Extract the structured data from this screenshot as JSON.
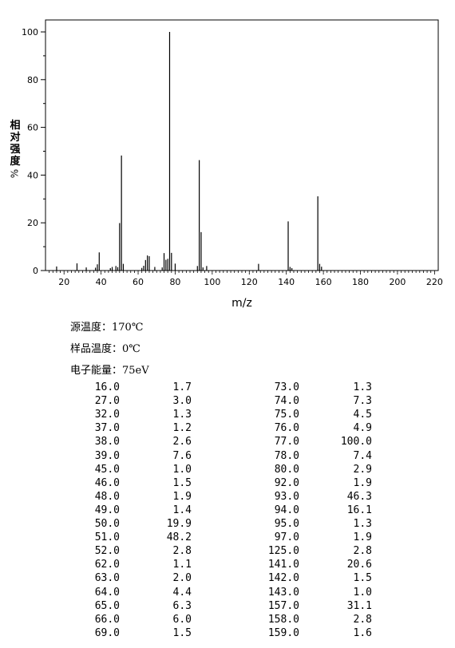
{
  "chart_data": {
    "type": "bar",
    "xlabel": "m/z",
    "ylabel": "相对强度%",
    "xlim": [
      10,
      222
    ],
    "ylim": [
      0,
      105
    ],
    "x_ticks": [
      20,
      40,
      60,
      80,
      100,
      120,
      140,
      160,
      180,
      200,
      220
    ],
    "y_ticks": [
      0,
      20,
      40,
      60,
      80,
      100
    ],
    "grid": false,
    "x": [
      16,
      27,
      32,
      37,
      38,
      39,
      45,
      46,
      48,
      49,
      50,
      51,
      52,
      62,
      63,
      64,
      65,
      66,
      69,
      73,
      74,
      75,
      76,
      77,
      78,
      80,
      92,
      93,
      94,
      95,
      97,
      125,
      141,
      142,
      143,
      157,
      158,
      159
    ],
    "values": [
      1.7,
      3.0,
      1.3,
      1.2,
      2.6,
      7.6,
      1.0,
      1.5,
      1.9,
      1.4,
      19.9,
      48.2,
      2.8,
      1.1,
      2.0,
      4.4,
      6.3,
      6.0,
      1.5,
      1.3,
      7.3,
      4.5,
      4.9,
      100.0,
      7.4,
      2.9,
      1.9,
      46.3,
      16.1,
      1.3,
      1.9,
      2.8,
      20.6,
      1.5,
      1.0,
      31.1,
      2.8,
      1.6
    ]
  },
  "info": {
    "source_temp": "源温度：170℃",
    "sample_temp": "样品温度：0℃",
    "electron_energy": "电子能量：75eV"
  },
  "table": {
    "left": [
      [
        "16.0",
        "1.7"
      ],
      [
        "27.0",
        "3.0"
      ],
      [
        "32.0",
        "1.3"
      ],
      [
        "37.0",
        "1.2"
      ],
      [
        "38.0",
        "2.6"
      ],
      [
        "39.0",
        "7.6"
      ],
      [
        "45.0",
        "1.0"
      ],
      [
        "46.0",
        "1.5"
      ],
      [
        "48.0",
        "1.9"
      ],
      [
        "49.0",
        "1.4"
      ],
      [
        "50.0",
        "19.9"
      ],
      [
        "51.0",
        "48.2"
      ],
      [
        "52.0",
        "2.8"
      ],
      [
        "62.0",
        "1.1"
      ],
      [
        "63.0",
        "2.0"
      ],
      [
        "64.0",
        "4.4"
      ],
      [
        "65.0",
        "6.3"
      ],
      [
        "66.0",
        "6.0"
      ],
      [
        "69.0",
        "1.5"
      ]
    ],
    "right": [
      [
        "73.0",
        "1.3"
      ],
      [
        "74.0",
        "7.3"
      ],
      [
        "75.0",
        "4.5"
      ],
      [
        "76.0",
        "4.9"
      ],
      [
        "77.0",
        "100.0"
      ],
      [
        "78.0",
        "7.4"
      ],
      [
        "80.0",
        "2.9"
      ],
      [
        "92.0",
        "1.9"
      ],
      [
        "93.0",
        "46.3"
      ],
      [
        "94.0",
        "16.1"
      ],
      [
        "95.0",
        "1.3"
      ],
      [
        "97.0",
        "1.9"
      ],
      [
        "125.0",
        "2.8"
      ],
      [
        "141.0",
        "20.6"
      ],
      [
        "142.0",
        "1.5"
      ],
      [
        "143.0",
        "1.0"
      ],
      [
        "157.0",
        "31.1"
      ],
      [
        "158.0",
        "2.8"
      ],
      [
        "159.0",
        "1.6"
      ]
    ]
  }
}
